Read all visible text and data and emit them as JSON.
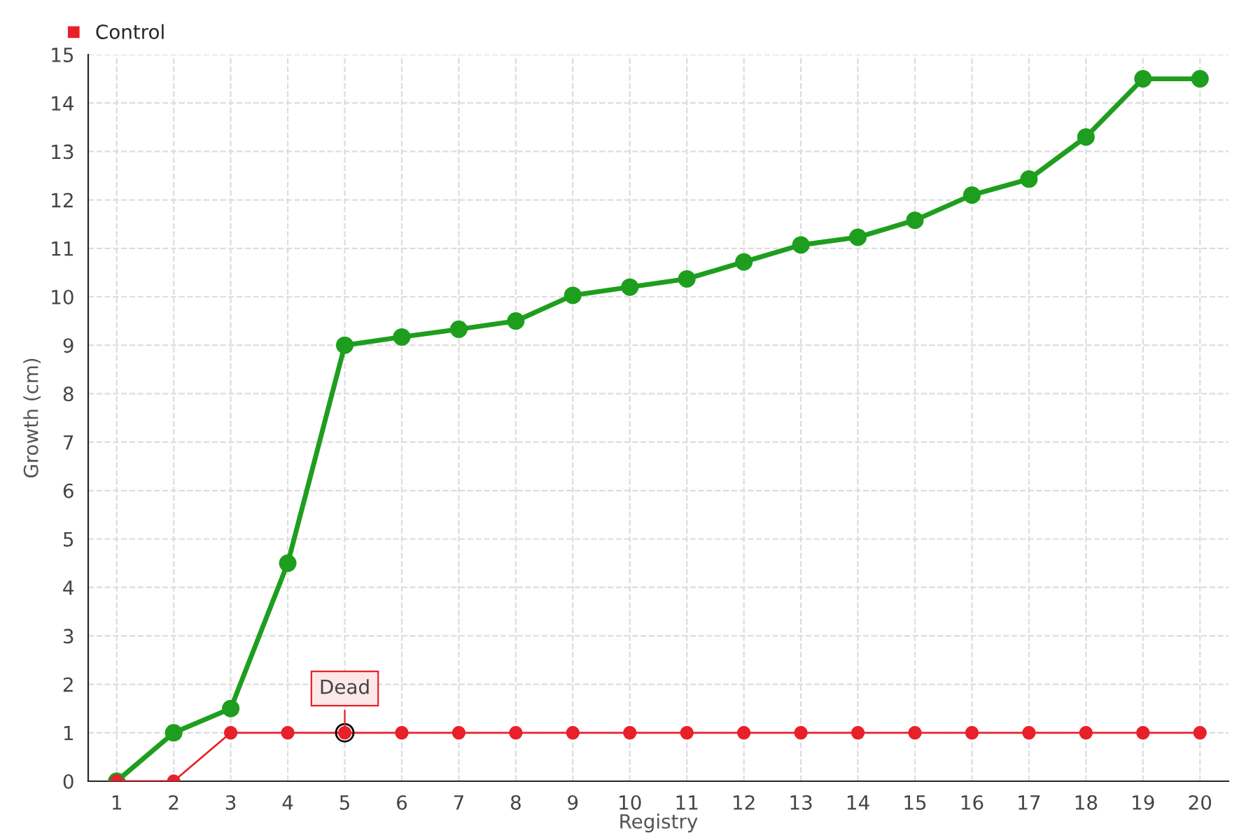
{
  "chart_data": {
    "type": "line",
    "xlabel": "Registry",
    "ylabel": "Growth (cm)",
    "categories": [
      "1",
      "2",
      "3",
      "4",
      "5",
      "6",
      "7",
      "8",
      "9",
      "10",
      "11",
      "12",
      "13",
      "14",
      "15",
      "16",
      "17",
      "18",
      "19",
      "20"
    ],
    "series": [
      {
        "color": "#1e9e1e",
        "values": [
          0,
          1,
          1.5,
          4.5,
          9,
          9.17,
          9.33,
          9.5,
          10.03,
          10.2,
          10.37,
          10.72,
          11.07,
          11.23,
          11.58,
          12.1,
          12.43,
          13.3,
          14.5,
          14.5
        ]
      },
      {
        "name": "Control",
        "color": "#e8202a",
        "values": [
          0,
          0,
          1,
          1,
          1,
          1,
          1,
          1,
          1,
          1,
          1,
          1,
          1,
          1,
          1,
          1,
          1,
          1,
          1,
          1
        ]
      }
    ],
    "annotations": [
      {
        "text": "Dead",
        "x": "5",
        "y": 1
      }
    ],
    "ylim": [
      0,
      15
    ],
    "yticks": [
      0,
      1,
      2,
      3,
      4,
      5,
      6,
      7,
      8,
      9,
      10,
      11,
      12,
      13,
      14,
      15
    ],
    "grid": true,
    "legend": "top left",
    "marker": "circle",
    "line_style": "solid"
  }
}
